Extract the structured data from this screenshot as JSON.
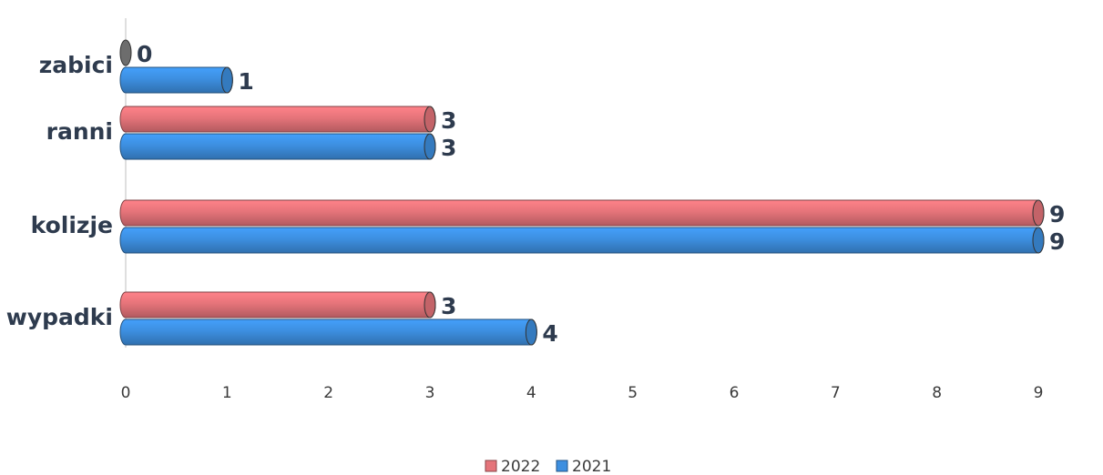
{
  "chart_data": {
    "type": "bar",
    "orientation": "horizontal",
    "categories": [
      "zabici",
      "ranni",
      "kolizje",
      "wypadki"
    ],
    "series": [
      {
        "name": "2022",
        "color": "#e5747a",
        "values": [
          0,
          3,
          9,
          3
        ]
      },
      {
        "name": "2021",
        "color": "#3d8fe0",
        "values": [
          1,
          3,
          9,
          4
        ]
      }
    ],
    "xlim": [
      0,
      9
    ],
    "x_ticks": [
      "0",
      "1",
      "2",
      "3",
      "4",
      "5",
      "6",
      "7",
      "8",
      "9"
    ],
    "grid": false,
    "legend_position": "bottom",
    "legend": [
      "2022",
      "2021"
    ]
  }
}
